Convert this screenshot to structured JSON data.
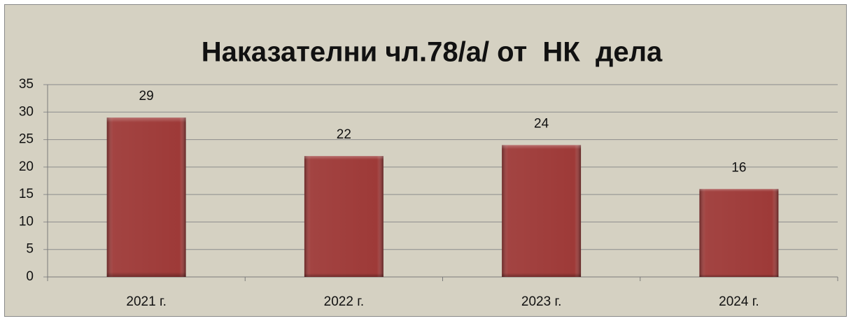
{
  "chart_data": {
    "type": "bar",
    "title": "Наказателни чл.78/а/ от  НК  дела",
    "categories": [
      "2021 г.",
      "2022 г.",
      "2023 г.",
      "2024 г."
    ],
    "values": [
      29,
      22,
      24,
      16
    ],
    "color": "#9e3a38",
    "ylim": [
      0,
      35
    ],
    "yticks": [
      0,
      5,
      10,
      15,
      20,
      25,
      30,
      35
    ],
    "grid": true
  }
}
